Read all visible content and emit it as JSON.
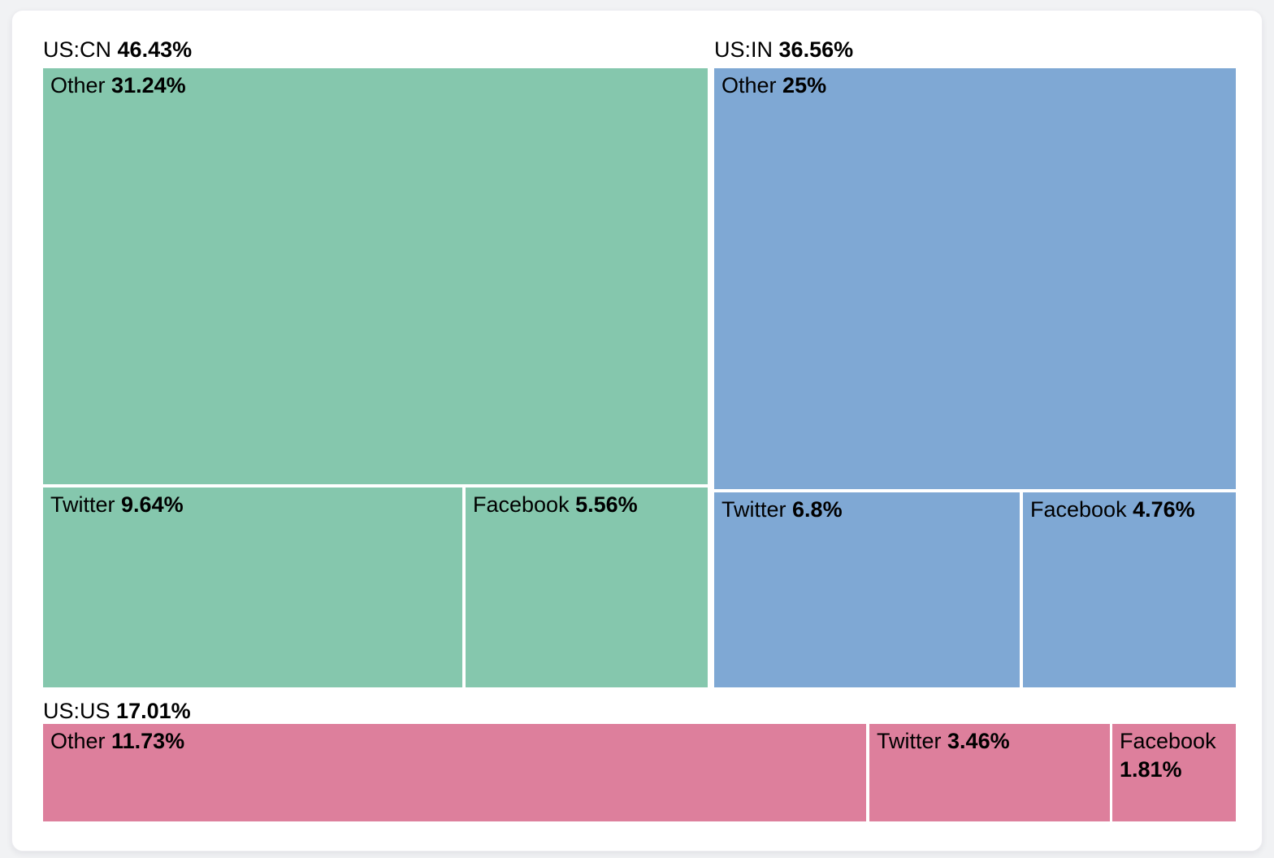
{
  "chart_data": {
    "type": "treemap",
    "title": "",
    "unit": "%",
    "groups": [
      {
        "label": "US:CN",
        "value_pct": 46.43,
        "display": "46.43%",
        "color": "#85C7AD",
        "children": [
          {
            "label": "Other",
            "value_pct": 31.24,
            "display": "31.24%"
          },
          {
            "label": "Twitter",
            "value_pct": 9.64,
            "display": "9.64%"
          },
          {
            "label": "Facebook",
            "value_pct": 5.56,
            "display": "5.56%"
          }
        ]
      },
      {
        "label": "US:IN",
        "value_pct": 36.56,
        "display": "36.56%",
        "color": "#7FA8D4",
        "children": [
          {
            "label": "Other",
            "value_pct": 25,
            "display": "25%"
          },
          {
            "label": "Twitter",
            "value_pct": 6.8,
            "display": "6.8%"
          },
          {
            "label": "Facebook",
            "value_pct": 4.76,
            "display": "4.76%"
          }
        ]
      },
      {
        "label": "US:US",
        "value_pct": 17.01,
        "display": "17.01%",
        "color": "#DD7F9C",
        "children": [
          {
            "label": "Other",
            "value_pct": 11.73,
            "display": "11.73%"
          },
          {
            "label": "Twitter",
            "value_pct": 3.46,
            "display": "3.46%"
          },
          {
            "label": "Facebook",
            "value_pct": 1.81,
            "display": "1.81%"
          }
        ]
      }
    ],
    "layout": {
      "legend": "none",
      "label_position": "top-left",
      "page_background": "#f1f2f4",
      "card_background": "#ffffff",
      "text_color": "#000000"
    }
  }
}
